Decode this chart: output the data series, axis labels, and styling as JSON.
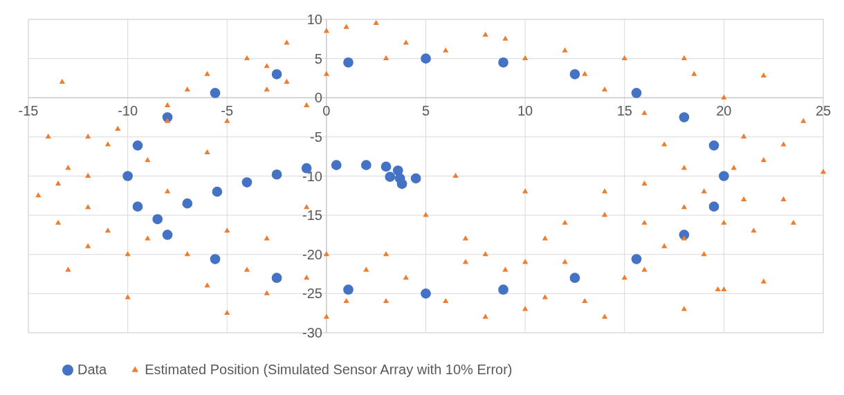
{
  "chart_data": {
    "type": "scatter",
    "xlim": [
      -15,
      25
    ],
    "ylim": [
      -30,
      10
    ],
    "xticks": [
      -15,
      -10,
      -5,
      0,
      5,
      10,
      15,
      20,
      25
    ],
    "yticks": [
      -30,
      -25,
      -20,
      -15,
      -10,
      -5,
      0,
      5,
      10
    ],
    "grid": true,
    "legend": "bottom",
    "series": [
      {
        "name": "Data",
        "color": "#4472c4",
        "marker": "circle",
        "x": [
          20,
          19.5,
          18,
          15.6,
          12.5,
          8.9,
          5,
          1.1,
          -2.5,
          -5.6,
          -8,
          -9.5,
          -10,
          -9.5,
          -8,
          -5.6,
          -2.5,
          1.1,
          5,
          8.9,
          12.5,
          15.6,
          18,
          19.5,
          -8.5,
          -7,
          -5.5,
          -4,
          -2.5,
          -1,
          0.5,
          2,
          3,
          3.6,
          3.7,
          3.8,
          3.2,
          4.5
        ],
        "values": [
          -10,
          -6.1,
          -2.5,
          0.6,
          3,
          4.5,
          5,
          4.5,
          3,
          0.6,
          -2.5,
          -6.1,
          -10,
          -13.9,
          -17.5,
          -20.6,
          -23,
          -24.5,
          -25,
          -24.5,
          -23,
          -20.6,
          -17.5,
          -13.9,
          -15.5,
          -13.5,
          -12,
          -10.8,
          -9.8,
          -9,
          -8.6,
          -8.6,
          -8.8,
          -9.3,
          -10.3,
          -11,
          -10.1,
          -10.3
        ]
      },
      {
        "name": "Estimated Position (Simulated Sensor Array with 10% Error)",
        "color": "#ed7d31",
        "marker": "triangle",
        "x": [
          -13.3,
          -14.5,
          -13.5,
          -13,
          -10,
          -5,
          0,
          3,
          8,
          10,
          14,
          18,
          22,
          22,
          24,
          25,
          23.5,
          20,
          19.7,
          0,
          1,
          2.5,
          -2,
          4,
          8,
          9,
          12,
          15,
          18,
          18.5,
          20,
          21,
          22,
          21,
          16,
          14,
          12,
          7,
          6.5,
          10,
          -12,
          -11,
          -10.5,
          -8,
          -7,
          -6,
          -4,
          -3,
          -2,
          -1,
          -8,
          -9,
          -8,
          -9,
          -7,
          -6,
          -4,
          -3,
          -1,
          1,
          2,
          4,
          6,
          7,
          9,
          11,
          12,
          13,
          15,
          16,
          17,
          18,
          19,
          20,
          21.5,
          19,
          18,
          17,
          16,
          14,
          13,
          10,
          6,
          3,
          0,
          -3,
          -5,
          -6,
          -12,
          -11,
          -10,
          -12,
          -13.5,
          -5,
          -3,
          0,
          3,
          8,
          11,
          -1,
          5,
          10,
          14,
          16,
          18,
          23,
          23,
          20.5,
          -14,
          -12,
          -13
        ],
        "values": [
          2,
          -12.5,
          -16,
          -22,
          -25.5,
          -27.5,
          -28,
          -26,
          -28,
          -27,
          -28,
          -27,
          -23.5,
          2.8,
          -3,
          -9.5,
          -16,
          -24.5,
          -24.5,
          8.5,
          9,
          9.5,
          7,
          7,
          8,
          7.5,
          6,
          5,
          5,
          3,
          0,
          -5,
          -8,
          -13,
          -16,
          -15,
          -16,
          -18,
          -10,
          -12,
          -10,
          -6,
          -4,
          -1,
          1,
          3,
          5,
          4,
          2,
          -1,
          -3,
          -8,
          -12,
          -18,
          -20,
          -24,
          -22,
          -25,
          -23,
          -26,
          -22,
          -23,
          -26,
          -21,
          -22,
          -25.5,
          -21,
          -26,
          -23,
          -22,
          -19,
          -18,
          -20,
          -16,
          -17,
          -12,
          -9,
          -6,
          -2,
          1,
          3,
          5,
          6,
          5,
          3,
          1,
          -3,
          -7,
          -14,
          -17,
          -20,
          -19,
          -11,
          -17,
          -18,
          -20,
          -20,
          -20,
          -18,
          -14,
          -15,
          -21,
          -12,
          -11,
          -14,
          -13,
          -6,
          -9,
          -5,
          -5,
          -9
        ]
      }
    ]
  }
}
